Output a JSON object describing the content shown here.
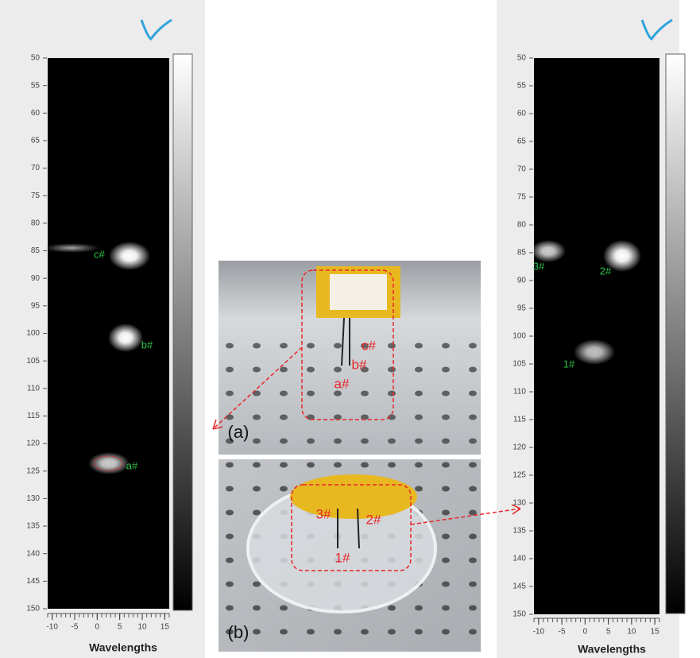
{
  "left_panel": {
    "ylim": [
      50,
      150
    ],
    "yticks": [
      50,
      55,
      60,
      65,
      70,
      75,
      80,
      85,
      90,
      95,
      100,
      105,
      110,
      115,
      120,
      125,
      130,
      135,
      140,
      145,
      150
    ],
    "xlim": [
      -11,
      16
    ],
    "xticks": [
      -10,
      -5,
      0,
      5,
      10,
      15
    ],
    "xlabel": "Wavelengths",
    "markers": [
      "c#",
      "b#",
      "a#"
    ]
  },
  "right_panel": {
    "ylim": [
      50,
      150
    ],
    "yticks": [
      50,
      55,
      60,
      65,
      70,
      75,
      80,
      85,
      90,
      95,
      100,
      105,
      110,
      115,
      120,
      125,
      130,
      135,
      140,
      145,
      150
    ],
    "xlim": [
      -11,
      16
    ],
    "xticks": [
      -10,
      -5,
      0,
      5,
      10,
      15
    ],
    "xlabel": "Wavelengths",
    "markers": [
      "3#",
      "2#",
      "1#"
    ]
  },
  "photo_a": {
    "panel_label": "(a)",
    "markers": [
      "c#",
      "b#",
      "a#"
    ]
  },
  "photo_b": {
    "panel_label": "(b)",
    "markers": [
      "3#",
      "2#",
      "1#"
    ]
  }
}
